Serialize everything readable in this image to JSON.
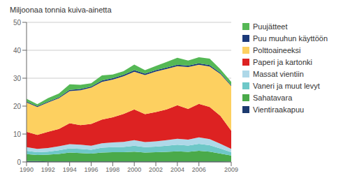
{
  "chart_data": {
    "type": "area",
    "stacked": true,
    "ylabel": "Miljoonaa tonnia kuiva-ainetta",
    "x": [
      1990,
      1991,
      1992,
      1993,
      1994,
      1995,
      1996,
      1997,
      1998,
      1999,
      2000,
      2001,
      2002,
      2003,
      2004,
      2005,
      2006,
      2007,
      2008,
      2009
    ],
    "xlim": [
      1990,
      2009
    ],
    "xticks": [
      1990,
      1992,
      1994,
      1996,
      1998,
      2000,
      2002,
      2004,
      2006,
      2009
    ],
    "ylim": [
      0,
      50
    ],
    "yticks": [
      0,
      10,
      20,
      30,
      40,
      50
    ],
    "grid": true,
    "legend": "right",
    "series": [
      {
        "name": "Vientiraakapuu",
        "color": "#1c3a6e",
        "values": [
          0.3,
          0.3,
          0.2,
          0.2,
          0.2,
          0.2,
          0.2,
          0.2,
          0.2,
          0.2,
          0.2,
          0.2,
          0.2,
          0.2,
          0.2,
          0.2,
          0.2,
          0.2,
          0.2,
          0.1
        ]
      },
      {
        "name": "Sahatavara",
        "color": "#4aaa4a",
        "values": [
          2.5,
          2.2,
          2.4,
          2.7,
          3.2,
          3.0,
          2.8,
          3.2,
          3.3,
          3.3,
          3.5,
          3.2,
          3.3,
          3.4,
          3.6,
          3.4,
          3.8,
          3.5,
          2.8,
          2.2
        ]
      },
      {
        "name": "Vaneri ja muut levyt",
        "color": "#6ec8c8",
        "values": [
          1.2,
          1.0,
          1.1,
          1.3,
          1.5,
          1.5,
          1.4,
          1.7,
          1.8,
          1.9,
          2.1,
          1.9,
          2.0,
          2.2,
          2.4,
          2.3,
          2.5,
          2.3,
          1.8,
          1.2
        ]
      },
      {
        "name": "Massat vientiin",
        "color": "#aed8e8",
        "values": [
          1.3,
          1.2,
          1.3,
          1.4,
          1.5,
          1.5,
          1.4,
          1.6,
          1.7,
          1.8,
          2.0,
          1.8,
          1.9,
          2.0,
          2.1,
          2.1,
          2.3,
          2.2,
          1.7,
          1.2
        ]
      },
      {
        "name": "Paperi ja kartonki",
        "color": "#dd2222",
        "values": [
          5.5,
          5.0,
          5.8,
          6.2,
          7.5,
          7.0,
          7.8,
          8.5,
          9.0,
          10.0,
          11.0,
          10.0,
          10.5,
          11.0,
          12.0,
          11.0,
          12.0,
          11.5,
          10.0,
          6.5
        ]
      },
      {
        "name": "Polttoaineeksi",
        "color": "#fdd060",
        "values": [
          10.5,
          10.0,
          10.5,
          11.0,
          11.5,
          12.5,
          13.0,
          13.5,
          13.5,
          13.5,
          13.5,
          14.0,
          14.5,
          14.5,
          14.0,
          15.0,
          14.0,
          14.5,
          15.0,
          16.0
        ]
      },
      {
        "name": "Puu muuhun käyttöön",
        "color": "#1c3a7a",
        "values": [
          0.3,
          0.3,
          0.3,
          0.3,
          0.4,
          0.4,
          0.4,
          0.5,
          0.5,
          0.5,
          0.6,
          0.5,
          0.5,
          0.5,
          0.5,
          0.5,
          0.5,
          0.5,
          0.4,
          0.3
        ]
      },
      {
        "name": "Puujätteet",
        "color": "#55b855",
        "values": [
          1.0,
          0.7,
          1.3,
          1.4,
          2.0,
          1.5,
          1.2,
          1.8,
          1.3,
          1.3,
          2.0,
          1.3,
          1.5,
          2.0,
          2.5,
          1.8,
          2.2,
          2.3,
          1.3,
          1.2
        ]
      }
    ]
  }
}
